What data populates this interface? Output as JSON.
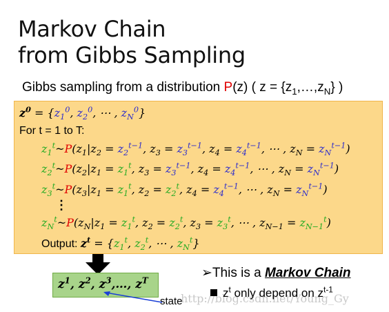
{
  "title": {
    "line1": "Markov Chain",
    "line2": "from Gibbs Sampling"
  },
  "subtitle": {
    "before": "Gibbs sampling from a distribution ",
    "p": "P",
    "after": "(z) ( z = {z",
    "mid": ",…,z",
    "end": "} )"
  },
  "algorithm": {
    "init": "z⁰ = {z₁⁰, z₂⁰, ⋯ , z_N⁰}",
    "loop": "For t = 1 to T:",
    "step1": "z₁ᵗ~P(z₁|z₂ = z₂ᵗ⁻¹, z₃ = z₃ᵗ⁻¹, z₄ = z₄ᵗ⁻¹, ⋯ , z_N = z_Nᵗ⁻¹)",
    "step2": "z₂ᵗ~P(z₂|z₁ = z₁ᵗ, z₃ = z₃ᵗ⁻¹, z₄ = z₄ᵗ⁻¹, ⋯ , z_N = z_Nᵗ⁻¹)",
    "step3": "z₃ᵗ~P(z₃|z₁ = z₁ᵗ, z₂ = z₂ᵗ, z₄ = z₄ᵗ⁻¹, ⋯ , z_N = z_Nᵗ⁻¹)",
    "dots": "⋮",
    "stepN": "z_Nᵗ~P(z_N|z₁ = z₁ᵗ, z₂ = z₂ᵗ, z₃ = z₃ᵗ, ⋯ , z_{N−1} = z_{N−1}ᵗ)",
    "output_label": "Output: ",
    "output": "zᵗ = {z₁ᵗ, z₂ᵗ, ⋯ , z_Nᵗ}"
  },
  "sequence": {
    "text": "z¹, z², z³,…, zᵀ",
    "state_label": "state"
  },
  "notes": {
    "markov_prefix": "➢This is a ",
    "markov_chain": "Markov Chain",
    "depend": "zᵗ only depend on zᵗ⁻¹"
  },
  "watermark": "http://blog.csdn.net/Young_Gy",
  "colors": {
    "box": "#fcd88a",
    "green_box": "#a8d48a",
    "red": "#e00000",
    "blue": "#2b2bcc",
    "green": "#22aa22"
  }
}
